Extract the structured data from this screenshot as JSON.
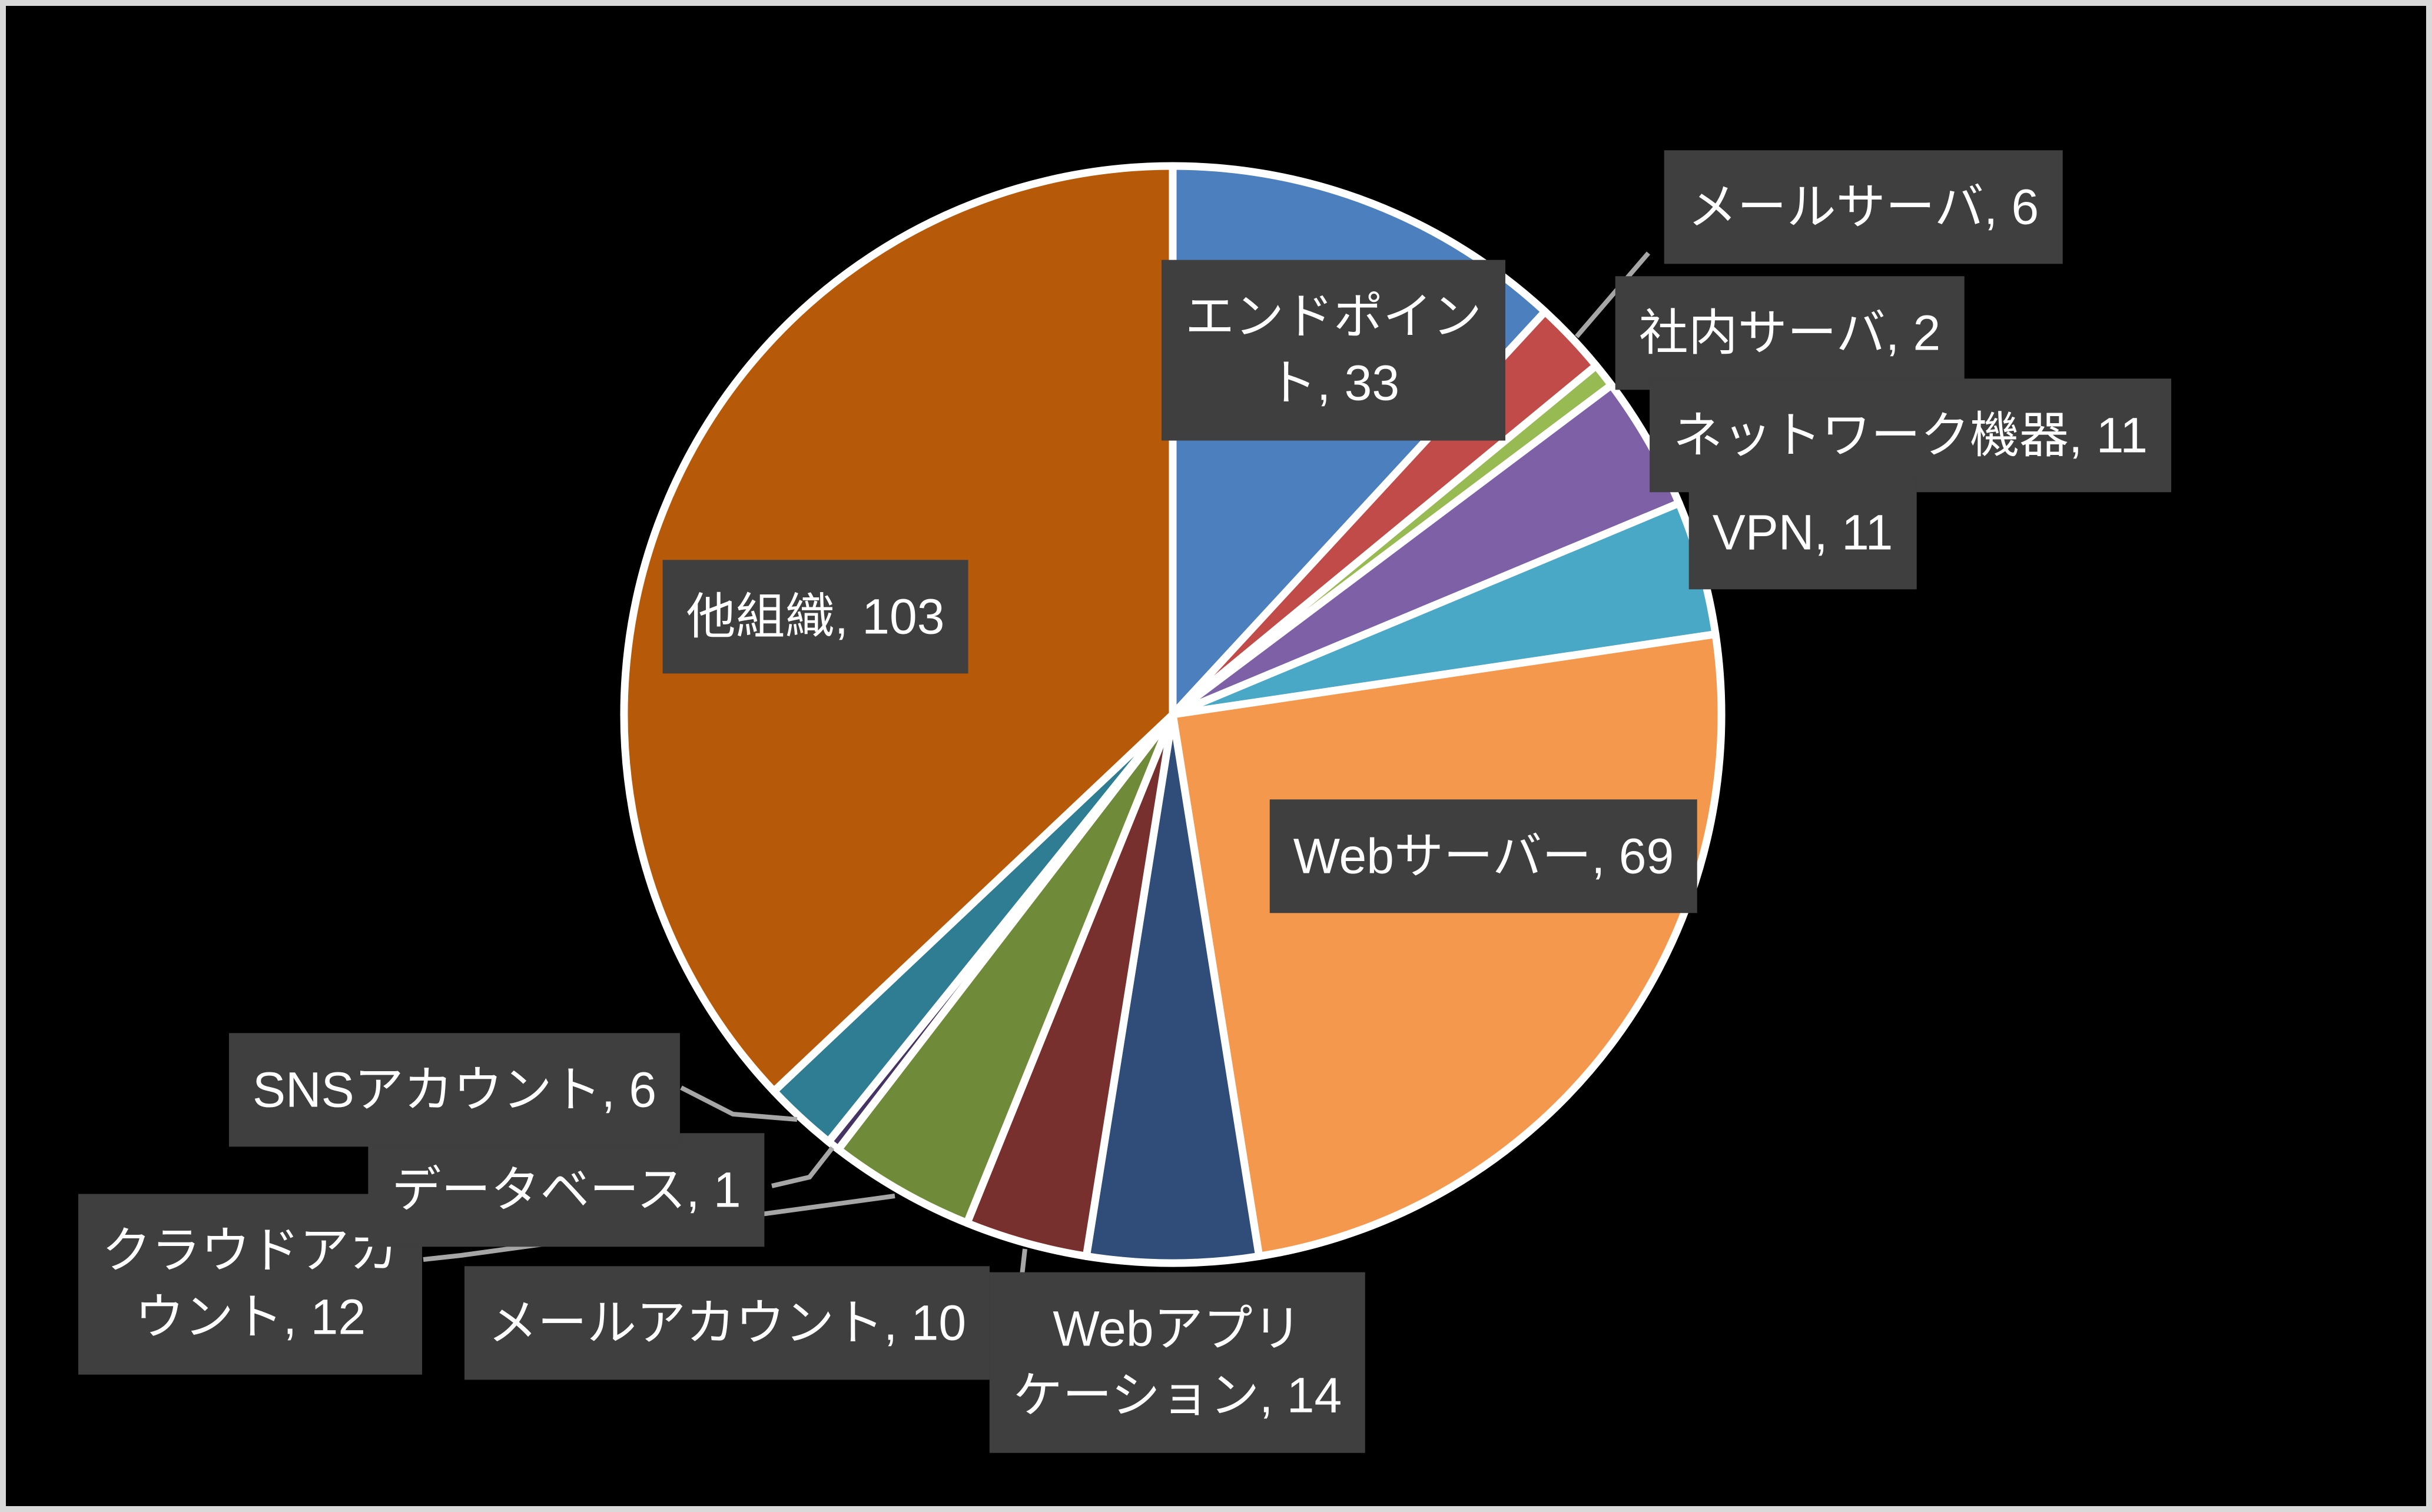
{
  "frame": {
    "background_color": "#000000",
    "border_color": "#D9D9D9"
  },
  "chart_data": {
    "type": "pie",
    "title": "",
    "total": 278,
    "start_angle_deg": 0,
    "direction": "clockwise",
    "legend_position": "none",
    "label_style": {
      "background_color": "#3F3F3F",
      "text_color": "#FFFFFF",
      "leader_line_color": "#A6A6A6",
      "slice_border_color": "#FFFFFF"
    },
    "slices": [
      {
        "name": "エンドポイント",
        "value": 33,
        "color": "#4C7FBE",
        "label": "エンドポイン\nト, 33"
      },
      {
        "name": "メールサーバ",
        "value": 6,
        "color": "#C04B48",
        "label": "メールサーバ, 6"
      },
      {
        "name": "社内サーバ",
        "value": 2,
        "color": "#97BA53",
        "label": "社内サーバ, 2"
      },
      {
        "name": "ネットワーク機器",
        "value": 11,
        "color": "#7D60A5",
        "label": "ネットワーク機器, 11"
      },
      {
        "name": "VPN",
        "value": 11,
        "color": "#48A8C6",
        "label": "VPN, 11"
      },
      {
        "name": "Webサーバー",
        "value": 69,
        "color": "#F4984E",
        "label": "Webサーバー, 69"
      },
      {
        "name": "Webアプリケーション",
        "value": 14,
        "color": "#2F4D78",
        "label": "Webアプリ\nケーション, 14"
      },
      {
        "name": "メールアカウント",
        "value": 10,
        "color": "#77302E",
        "label": "メールアカウント, 10"
      },
      {
        "name": "クラウドアカウント",
        "value": 12,
        "color": "#6F8B3A",
        "label": "クラウドアカ\nウント, 12"
      },
      {
        "name": "データベース",
        "value": 1,
        "color": "#453463",
        "label": "データベース, 1"
      },
      {
        "name": "SNSアカウント",
        "value": 6,
        "color": "#2E7D92",
        "label": "SNSアカウント, 6"
      },
      {
        "name": "他組織",
        "value": 103,
        "color": "#B65908",
        "label": "他組織, 103"
      }
    ]
  }
}
